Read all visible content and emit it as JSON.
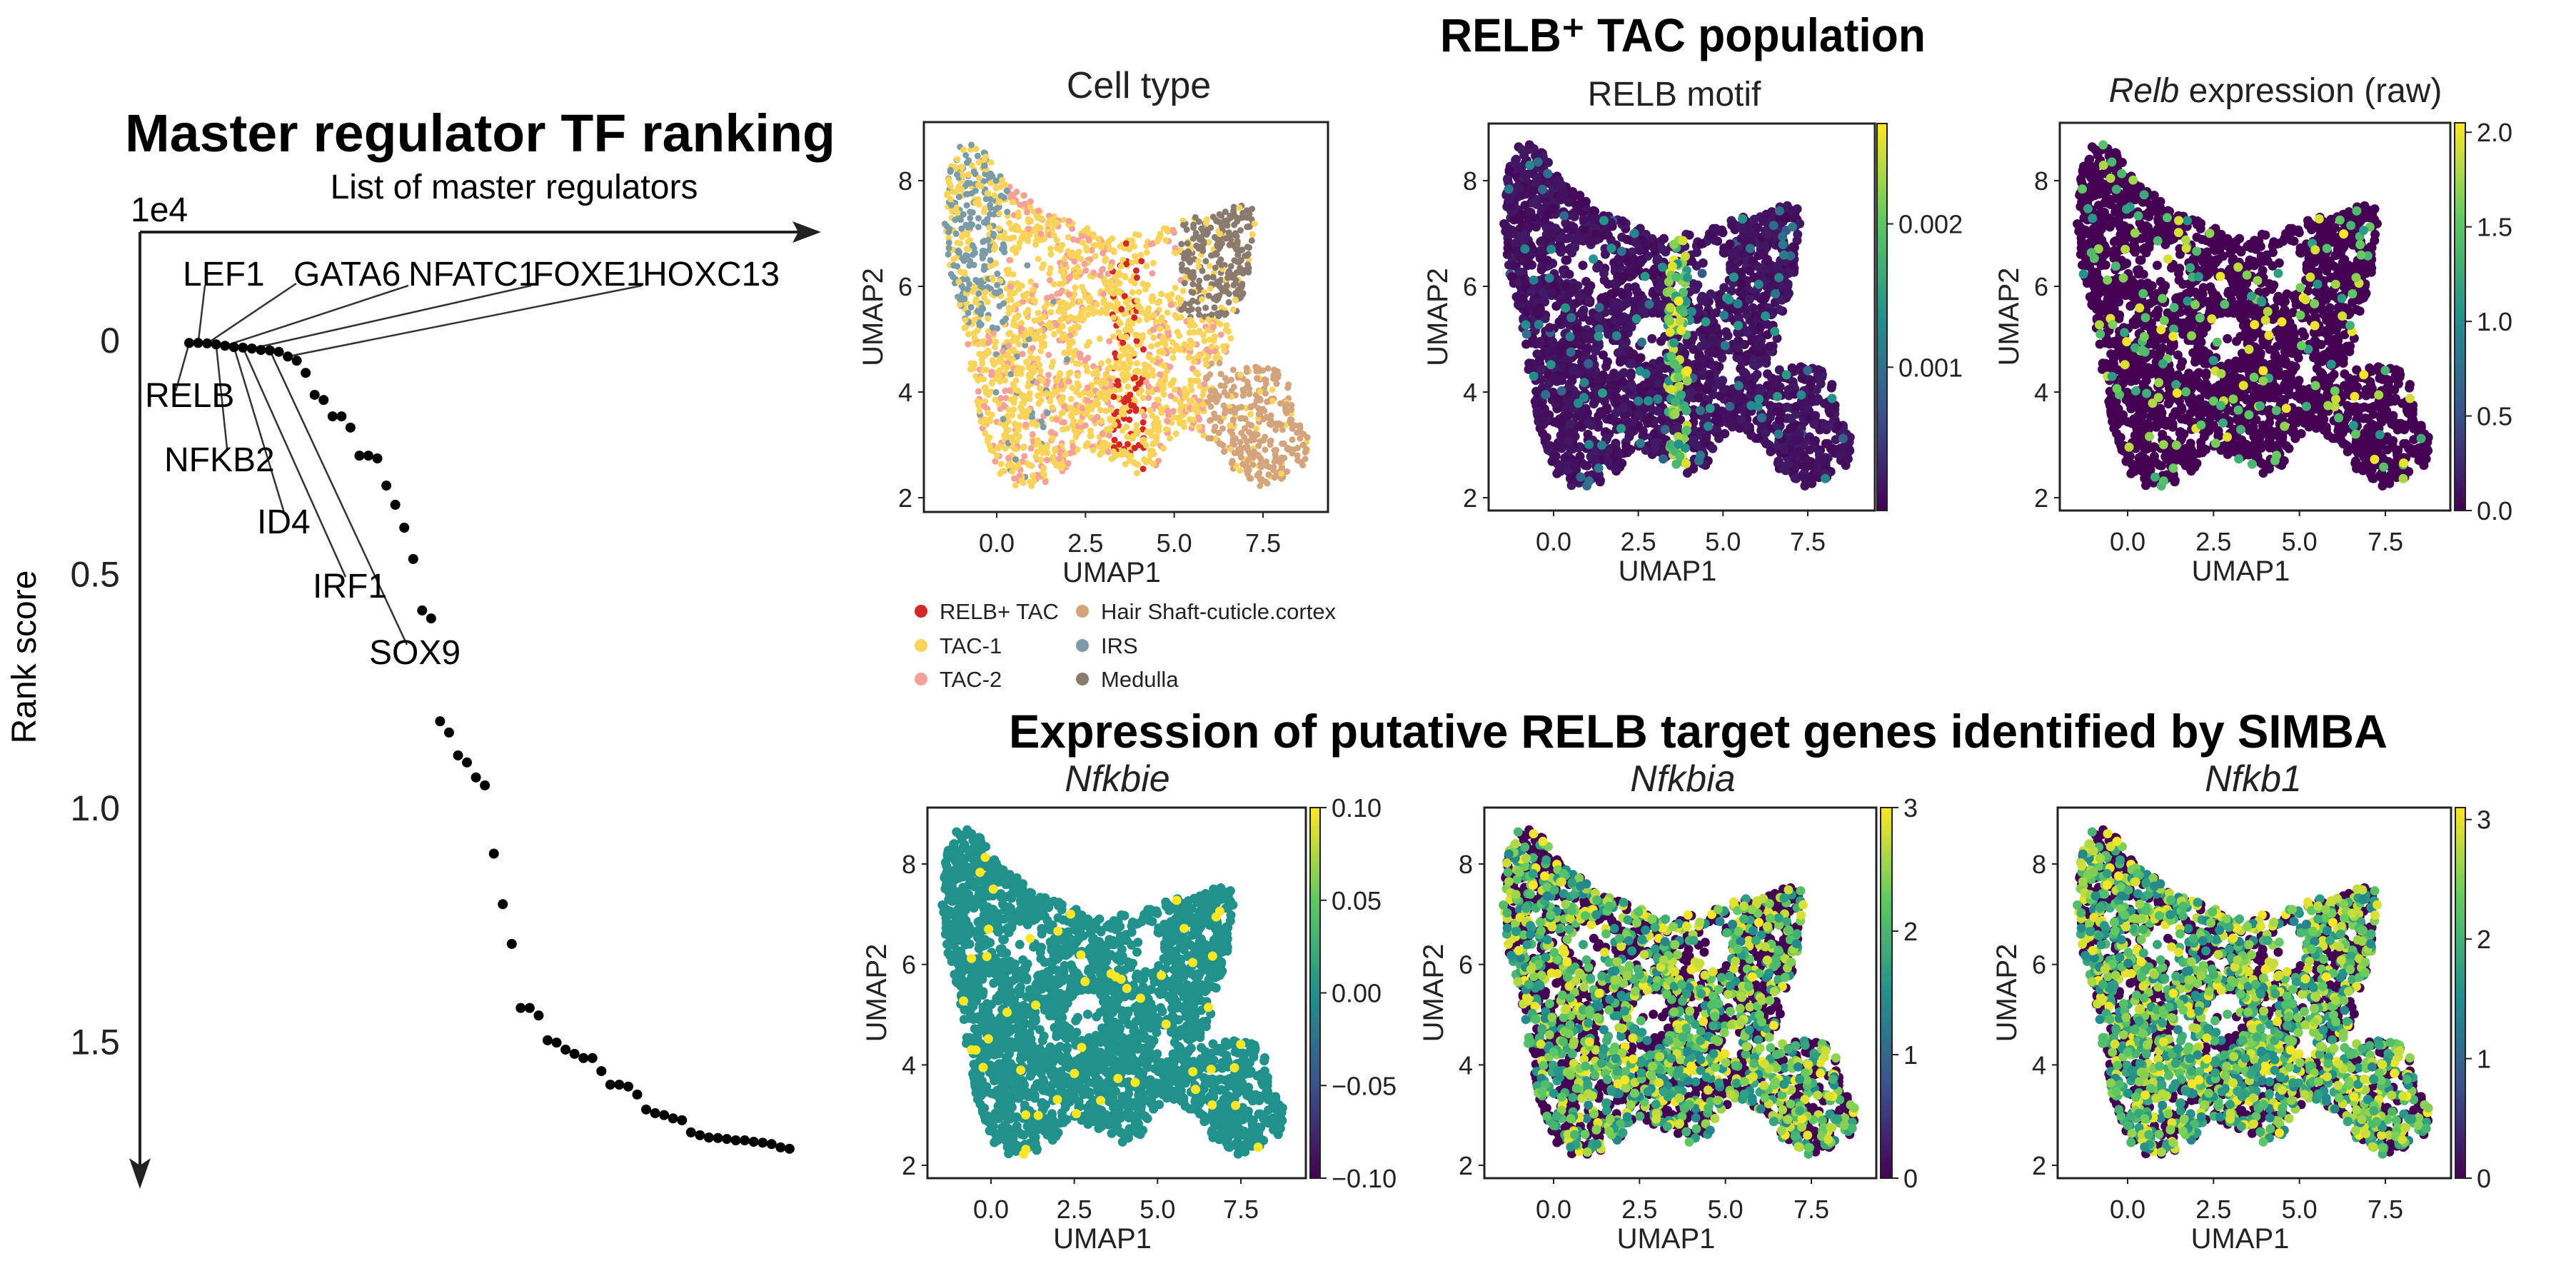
{
  "chart_data": [
    {
      "type": "scatter",
      "title": "Master regulator TF ranking",
      "xlabel": "List of master regulators",
      "ylabel": "Rank  score",
      "y_offset_label": "1e4",
      "y_axis_inverted": true,
      "yticks": [
        "0",
        "0.5",
        "1.0",
        "1.5"
      ],
      "ytick_values": [
        0,
        0.5,
        1.0,
        1.5
      ],
      "point_color": "#000000",
      "values": [
        0.005,
        0.005,
        0.006,
        0.008,
        0.011,
        0.014,
        0.015,
        0.017,
        0.02,
        0.021,
        0.024,
        0.034,
        0.043,
        0.069,
        0.116,
        0.127,
        0.162,
        0.162,
        0.186,
        0.246,
        0.246,
        0.252,
        0.31,
        0.351,
        0.4,
        0.467,
        0.577,
        0.594,
        0.814,
        0.838,
        0.887,
        0.902,
        0.934,
        0.951,
        1.097,
        1.205,
        1.29,
        1.427,
        1.427,
        1.443,
        1.496,
        1.501,
        1.516,
        1.525,
        1.534,
        1.534,
        1.562,
        1.591,
        1.591,
        1.595,
        1.612,
        1.644,
        1.652,
        1.656,
        1.663,
        1.667,
        1.693,
        1.699,
        1.704,
        1.705,
        1.707,
        1.71,
        1.71,
        1.713,
        1.715,
        1.718,
        1.725,
        1.728
      ],
      "annotations": [
        {
          "label": "RELB",
          "rank": 1
        },
        {
          "label": "LEF1",
          "rank": 2
        },
        {
          "label": "GATA6",
          "rank": 3
        },
        {
          "label": "NFKB2",
          "rank": 4
        },
        {
          "label": "NFATC1",
          "rank": 5
        },
        {
          "label": "ID4",
          "rank": 6
        },
        {
          "label": "IRF1",
          "rank": 7
        },
        {
          "label": "FOXE1",
          "rank": 8
        },
        {
          "label": "SOX9",
          "rank": 10
        },
        {
          "label": "HOXC13",
          "rank": 12
        }
      ]
    },
    {
      "type": "scatter",
      "group_title": "RELB⁺ TAC population",
      "title": "Cell type",
      "xlabel": "UMAP1",
      "ylabel": "UMAP2",
      "xticks": [
        "0.0",
        "2.5",
        "5.0",
        "7.5"
      ],
      "xtick_values": [
        0,
        2.5,
        5,
        7.5
      ],
      "yticks": [
        "2",
        "4",
        "6",
        "8"
      ],
      "ytick_values": [
        2,
        4,
        6,
        8
      ],
      "legend_placement": "bottom",
      "legend": [
        {
          "name": "RELB+ TAC",
          "color": "#d62728"
        },
        {
          "name": "TAC-1",
          "color": "#f8d55a"
        },
        {
          "name": "TAC-2",
          "color": "#f4a19b"
        },
        {
          "name": "Hair Shaft-cuticle.cortex",
          "color": "#d4a57c"
        },
        {
          "name": "IRS",
          "color": "#7b9ca6"
        },
        {
          "name": "Medulla",
          "color": "#8b7a6e"
        }
      ]
    },
    {
      "type": "scatter",
      "title": "RELB motif",
      "xlabel": "UMAP1",
      "ylabel": "UMAP2",
      "xticks": [
        "0.0",
        "2.5",
        "5.0",
        "7.5"
      ],
      "xtick_values": [
        0,
        2.5,
        5,
        7.5
      ],
      "yticks": [
        "2",
        "4",
        "6",
        "8"
      ],
      "ytick_values": [
        2,
        4,
        6,
        8
      ],
      "colormap": "viridis",
      "color_range": [
        0,
        0.0027
      ],
      "colorbar_ticks": [
        "0.001",
        "0.002"
      ],
      "colorbar_tick_values": [
        0.001,
        0.002
      ]
    },
    {
      "type": "scatter",
      "title_italic": "Relb",
      "title_rest": " expression (raw)",
      "xlabel": "UMAP1",
      "ylabel": "UMAP2",
      "xticks": [
        "0.0",
        "2.5",
        "5.0",
        "7.5"
      ],
      "xtick_values": [
        0,
        2.5,
        5,
        7.5
      ],
      "yticks": [
        "2",
        "4",
        "6",
        "8"
      ],
      "ytick_values": [
        2,
        4,
        6,
        8
      ],
      "colormap": "viridis",
      "color_range": [
        0,
        2.05
      ],
      "colorbar_ticks": [
        "0.0",
        "0.5",
        "1.0",
        "1.5",
        "2.0"
      ],
      "colorbar_tick_values": [
        0,
        0.5,
        1.0,
        1.5,
        2.0
      ]
    },
    {
      "type": "scatter",
      "group_title": "Expression of putative RELB target genes identified by SIMBA",
      "title": "Nfkbie",
      "xlabel": "UMAP1",
      "ylabel": "UMAP2",
      "xticks": [
        "0.0",
        "2.5",
        "5.0",
        "7.5"
      ],
      "xtick_values": [
        0,
        2.5,
        5,
        7.5
      ],
      "yticks": [
        "2",
        "4",
        "6",
        "8"
      ],
      "ytick_values": [
        2,
        4,
        6,
        8
      ],
      "colormap": "viridis",
      "color_range": [
        -0.1,
        0.1
      ],
      "colorbar_ticks": [
        "−0.10",
        "−0.05",
        "0.00",
        "0.05",
        "0.10"
      ],
      "colorbar_tick_values": [
        -0.1,
        -0.05,
        0,
        0.05,
        0.1
      ]
    },
    {
      "type": "scatter",
      "title": "Nfkbia",
      "xlabel": "UMAP1",
      "ylabel": "UMAP2",
      "xticks": [
        "0.0",
        "2.5",
        "5.0",
        "7.5"
      ],
      "xtick_values": [
        0,
        2.5,
        5,
        7.5
      ],
      "yticks": [
        "2",
        "4",
        "6",
        "8"
      ],
      "ytick_values": [
        2,
        4,
        6,
        8
      ],
      "colormap": "viridis",
      "color_range": [
        0,
        3.0
      ],
      "colorbar_ticks": [
        "0",
        "1",
        "2",
        "3"
      ],
      "colorbar_tick_values": [
        0,
        1,
        2,
        3
      ]
    },
    {
      "type": "scatter",
      "title": "Nfkb1",
      "xlabel": "UMAP1",
      "ylabel": "UMAP2",
      "xticks": [
        "0.0",
        "2.5",
        "5.0",
        "7.5"
      ],
      "xtick_values": [
        0,
        2.5,
        5,
        7.5
      ],
      "yticks": [
        "2",
        "4",
        "6",
        "8"
      ],
      "ytick_values": [
        2,
        4,
        6,
        8
      ],
      "colormap": "viridis",
      "color_range": [
        0,
        3.1
      ],
      "colorbar_ticks": [
        "0",
        "1",
        "2",
        "3"
      ],
      "colorbar_tick_values": [
        0,
        1,
        2,
        3
      ]
    }
  ]
}
